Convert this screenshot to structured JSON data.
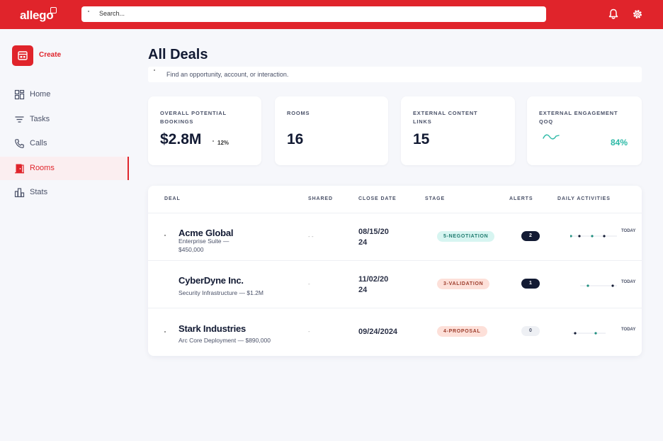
{
  "app": {
    "logo_text": "allego",
    "brand_color": "#e0242b"
  },
  "topbar": {
    "search_placeholder": "Search...",
    "icons": [
      "bell-icon",
      "gear-icon"
    ]
  },
  "sidebar": {
    "create_label": "Create",
    "items": [
      {
        "label": "Home",
        "icon": "grid-icon",
        "active": false
      },
      {
        "label": "Tasks",
        "icon": "filter-lines-icon",
        "active": false
      },
      {
        "label": "Calls",
        "icon": "phone-icon",
        "active": false
      },
      {
        "label": "Rooms",
        "icon": "door-icon",
        "active": true
      },
      {
        "label": "Stats",
        "icon": "bar-chart-icon",
        "active": false
      }
    ]
  },
  "main": {
    "title": "All Deals",
    "filter_placeholder": "Find an opportunity, account, or interaction.",
    "cards": [
      {
        "title": "OVERALL POTENTIAL BOOKINGS",
        "value": "$2.8M",
        "sub": "12%"
      },
      {
        "title": "ROOMS",
        "value": "16"
      },
      {
        "title": "EXTERNAL CONTENT LINKS",
        "value": "15"
      },
      {
        "title": "EXTERNAL ENGAGEMENT QOQ",
        "value": "84%",
        "icon": "trend-wave-icon",
        "value_color": "#2bb9a6"
      }
    ],
    "table": {
      "headers": [
        "DEAL",
        "SHARED",
        "CLOSE DATE",
        "STAGE",
        "ALERTS",
        "DAILY ACTIVITIES"
      ],
      "today_label": "TODAY",
      "rows": [
        {
          "name": "Acme Global",
          "detail": "Enterprise Suite — $450,000",
          "shared": "- -",
          "close_date": "08/15/2024",
          "stage": "5-NEGOTIATION",
          "stage_bg": "#d7f5f1",
          "stage_color": "#1f7a6e",
          "alerts": "2",
          "activity_dots": [
            "#1f8f7f",
            "#121a33",
            "#1f8f7f",
            "#121a33"
          ]
        },
        {
          "name": "CyberDyne Inc.",
          "detail": "Security Infrastructure — $1.2M",
          "shared": "-",
          "close_date": "11/02/2024",
          "stage": "3-VALIDATION",
          "stage_bg": "#fde0d9",
          "stage_color": "#9c3b2a",
          "alerts": "1",
          "activity_dots": [
            "#1f8f7f",
            "#121a33"
          ]
        },
        {
          "name": "Stark Industries",
          "detail": "Arc Core Deployment — $890,000",
          "shared": "-",
          "close_date": "09/24/2024",
          "stage": "4-PROPOSAL",
          "stage_bg": "#fde0d9",
          "stage_color": "#9c3b2a",
          "alerts": "0",
          "activity_dots": [
            "#121a33",
            "#1f8f7f"
          ]
        }
      ]
    }
  }
}
